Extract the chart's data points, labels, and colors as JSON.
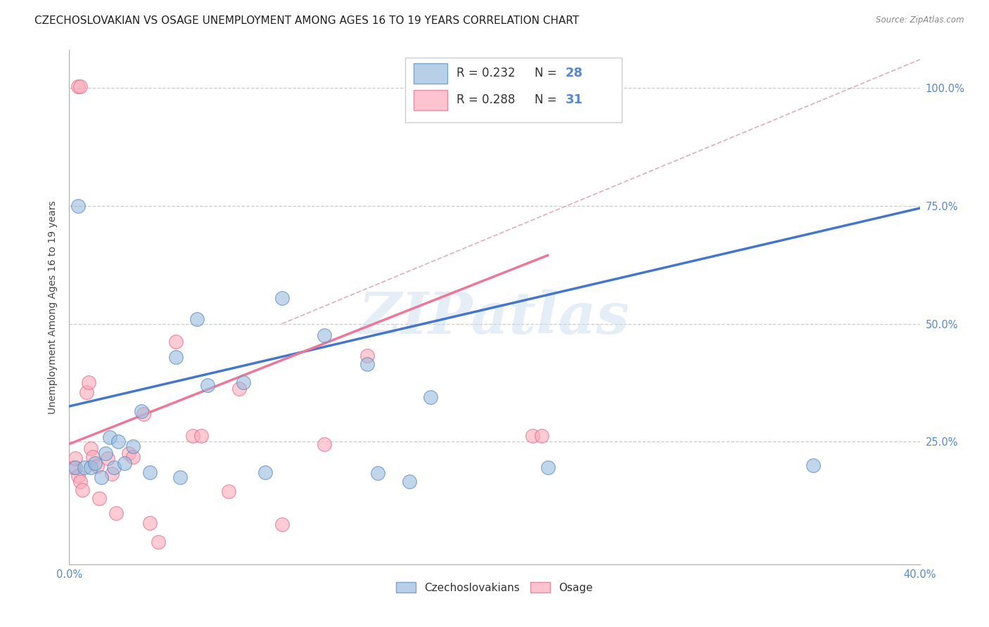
{
  "title": "CZECHOSLOVAKIAN VS OSAGE UNEMPLOYMENT AMONG AGES 16 TO 19 YEARS CORRELATION CHART",
  "source": "Source: ZipAtlas.com",
  "ylabel": "Unemployment Among Ages 16 to 19 years",
  "xlim": [
    0.0,
    0.4
  ],
  "ylim": [
    -0.01,
    1.08
  ],
  "xticks": [
    0.0,
    0.08,
    0.16,
    0.24,
    0.32,
    0.4
  ],
  "xticklabels": [
    "0.0%",
    "",
    "",
    "",
    "",
    "40.0%"
  ],
  "yticks": [
    0.0,
    0.25,
    0.5,
    0.75,
    1.0
  ],
  "right_yticklabels": [
    "",
    "25.0%",
    "50.0%",
    "75.0%",
    "100.0%"
  ],
  "blue_color": "#99BBDD",
  "blue_edge": "#5588BB",
  "pink_color": "#FFAABC",
  "pink_edge": "#DD6688",
  "blue_trend_color": "#4477CC",
  "pink_trend_color": "#EE7799",
  "diag_color": "#DDAAAA",
  "grid_color": "#CCCCCC",
  "tick_color": "#5588CC",
  "background_color": "#FFFFFF",
  "legend_r_blue": "R = 0.232",
  "legend_n_blue": "28",
  "legend_r_pink": "R = 0.288",
  "legend_n_pink": "31",
  "blue_scatter_x": [
    0.003,
    0.007,
    0.01,
    0.012,
    0.015,
    0.017,
    0.019,
    0.021,
    0.023,
    0.026,
    0.03,
    0.034,
    0.038,
    0.05,
    0.052,
    0.06,
    0.065,
    0.082,
    0.092,
    0.1,
    0.12,
    0.14,
    0.145,
    0.16,
    0.17,
    0.225,
    0.35,
    0.004
  ],
  "blue_scatter_y": [
    0.195,
    0.195,
    0.195,
    0.205,
    0.175,
    0.225,
    0.26,
    0.195,
    0.25,
    0.205,
    0.24,
    0.315,
    0.185,
    0.43,
    0.175,
    0.51,
    0.37,
    0.375,
    0.185,
    0.555,
    0.475,
    0.415,
    0.183,
    0.165,
    0.345,
    0.195,
    0.2,
    0.75
  ],
  "pink_scatter_x": [
    0.002,
    0.003,
    0.004,
    0.005,
    0.006,
    0.008,
    0.009,
    0.01,
    0.011,
    0.013,
    0.014,
    0.018,
    0.02,
    0.022,
    0.028,
    0.03,
    0.035,
    0.038,
    0.042,
    0.05,
    0.058,
    0.062,
    0.075,
    0.08,
    0.1,
    0.12,
    0.14,
    0.218,
    0.222,
    0.004,
    0.005
  ],
  "pink_scatter_y": [
    0.195,
    0.215,
    0.178,
    0.165,
    0.148,
    0.355,
    0.375,
    0.235,
    0.218,
    0.198,
    0.13,
    0.215,
    0.182,
    0.098,
    0.225,
    0.218,
    0.308,
    0.078,
    0.038,
    0.462,
    0.262,
    0.262,
    0.145,
    0.362,
    0.075,
    0.245,
    0.432,
    0.262,
    0.262,
    1.003,
    1.003
  ],
  "blue_line_x": [
    0.0,
    0.4
  ],
  "blue_line_y": [
    0.325,
    0.745
  ],
  "pink_line_x": [
    0.0,
    0.225
  ],
  "pink_line_y": [
    0.245,
    0.645
  ],
  "diag_line_x": [
    0.1,
    0.4
  ],
  "diag_line_y": [
    0.5,
    1.06
  ],
  "watermark": "ZIPatlas",
  "title_fontsize": 11,
  "label_fontsize": 10,
  "tick_fontsize": 10.5
}
